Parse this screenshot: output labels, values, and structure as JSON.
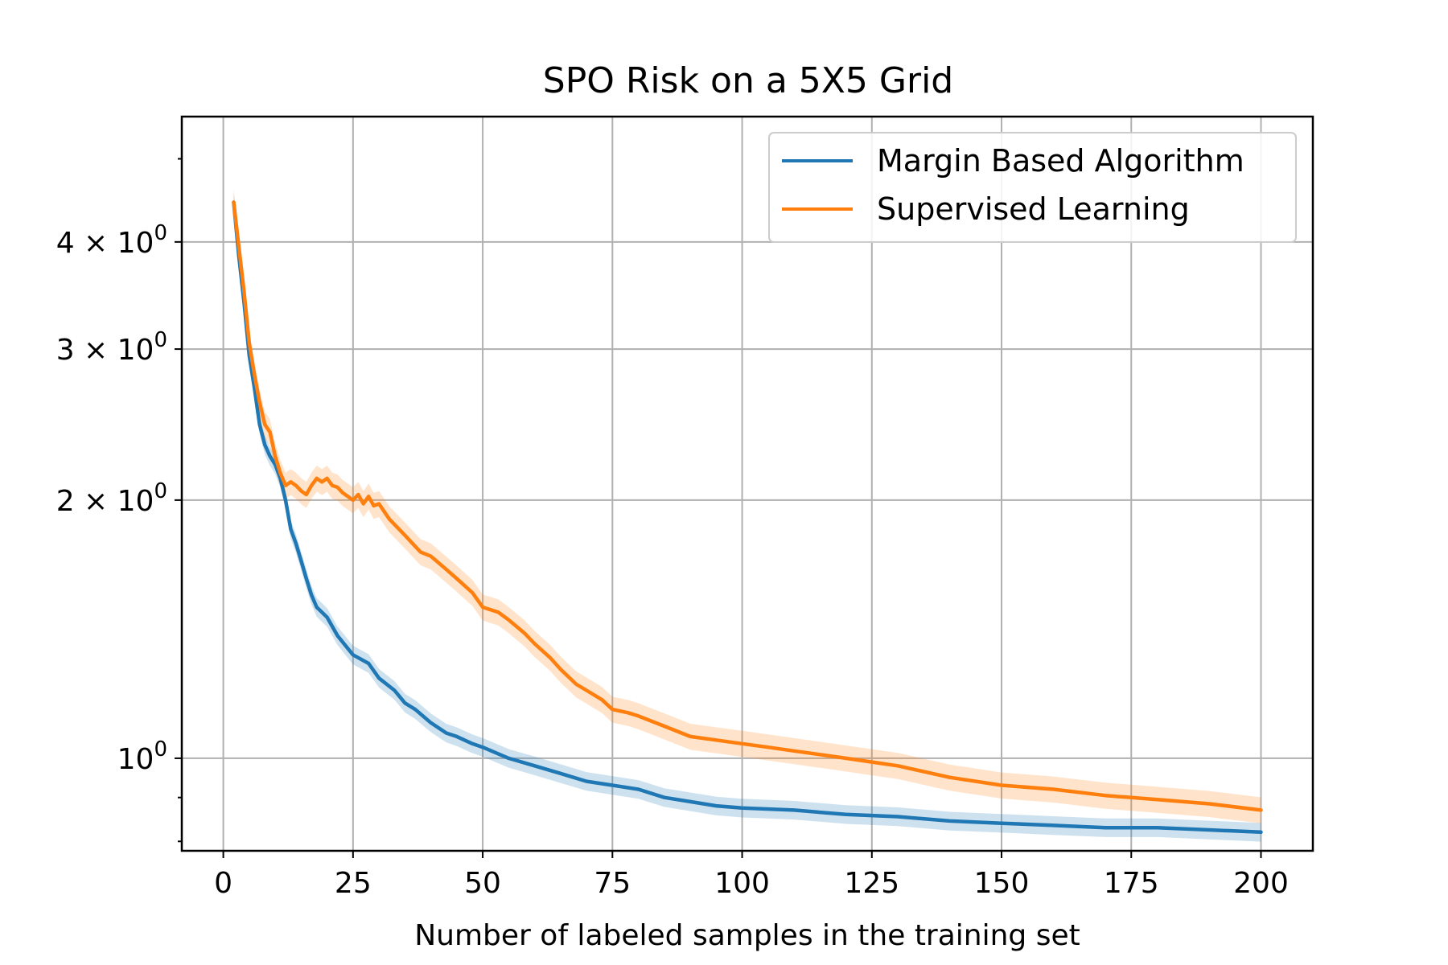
{
  "chart_data": {
    "type": "line",
    "title": "SPO Risk on a 5X5 Grid",
    "xlabel": "Number of labeled samples in the training set",
    "ylabel": "",
    "yscale": "log",
    "xlim": [
      -8,
      210
    ],
    "ylim": [
      0.78,
      5.6
    ],
    "grid": true,
    "legend_position": "top-right",
    "x_ticks": [
      0,
      25,
      50,
      75,
      100,
      125,
      150,
      175,
      200
    ],
    "x_tick_labels": [
      "0",
      "25",
      "50",
      "75",
      "100",
      "125",
      "150",
      "175",
      "200"
    ],
    "y_ticks": [
      {
        "value": 1,
        "base": "10",
        "exp": "0",
        "mult": ""
      },
      {
        "value": 2,
        "base": "10",
        "exp": "0",
        "mult": "2 × "
      },
      {
        "value": 3,
        "base": "10",
        "exp": "0",
        "mult": "3 × "
      },
      {
        "value": 4,
        "base": "10",
        "exp": "0",
        "mult": "4 × "
      }
    ],
    "y_minor_ticks": [
      0.8,
      0.9,
      5
    ],
    "series": [
      {
        "name": "Margin Based Algorithm",
        "color": "#1f77b4",
        "band_color": "#1f77b4",
        "x": [
          2,
          3,
          4,
          5,
          6,
          7,
          8,
          9,
          10,
          11,
          12,
          13,
          14,
          15,
          16,
          17,
          18,
          19,
          20,
          22,
          25,
          28,
          30,
          33,
          35,
          37,
          40,
          43,
          45,
          48,
          50,
          55,
          60,
          65,
          70,
          75,
          80,
          85,
          90,
          95,
          100,
          110,
          120,
          130,
          140,
          150,
          160,
          170,
          180,
          190,
          200
        ],
        "y": [
          4.45,
          3.85,
          3.4,
          2.95,
          2.7,
          2.45,
          2.32,
          2.25,
          2.2,
          2.12,
          2.0,
          1.85,
          1.78,
          1.7,
          1.62,
          1.55,
          1.5,
          1.48,
          1.46,
          1.39,
          1.32,
          1.29,
          1.24,
          1.2,
          1.16,
          1.14,
          1.1,
          1.07,
          1.06,
          1.04,
          1.03,
          1.0,
          0.98,
          0.96,
          0.94,
          0.93,
          0.92,
          0.9,
          0.89,
          0.88,
          0.875,
          0.87,
          0.86,
          0.855,
          0.845,
          0.84,
          0.835,
          0.83,
          0.83,
          0.825,
          0.82
        ],
        "band": 0.025
      },
      {
        "name": "Supervised Learning",
        "color": "#ff7f0e",
        "band_color": "#ff7f0e",
        "x": [
          2,
          3,
          4,
          5,
          6,
          7,
          8,
          9,
          10,
          11,
          12,
          13,
          14,
          15,
          16,
          17,
          18,
          19,
          20,
          21,
          22,
          23,
          24,
          25,
          26,
          27,
          28,
          29,
          30,
          32,
          35,
          38,
          40,
          43,
          45,
          48,
          50,
          53,
          55,
          58,
          60,
          63,
          65,
          68,
          70,
          73,
          75,
          78,
          80,
          85,
          90,
          95,
          100,
          105,
          110,
          115,
          120,
          125,
          130,
          140,
          150,
          160,
          170,
          180,
          190,
          200
        ],
        "y": [
          4.45,
          3.95,
          3.5,
          3.05,
          2.8,
          2.6,
          2.45,
          2.4,
          2.25,
          2.15,
          2.08,
          2.1,
          2.08,
          2.05,
          2.03,
          2.08,
          2.12,
          2.1,
          2.12,
          2.08,
          2.07,
          2.04,
          2.02,
          2.0,
          2.03,
          1.98,
          2.02,
          1.97,
          1.98,
          1.9,
          1.82,
          1.74,
          1.72,
          1.66,
          1.62,
          1.56,
          1.5,
          1.48,
          1.45,
          1.4,
          1.36,
          1.31,
          1.27,
          1.22,
          1.2,
          1.17,
          1.14,
          1.13,
          1.12,
          1.09,
          1.06,
          1.05,
          1.04,
          1.03,
          1.02,
          1.01,
          1.0,
          0.99,
          0.98,
          0.95,
          0.93,
          0.92,
          0.905,
          0.895,
          0.885,
          0.87
        ],
        "band": 0.035
      }
    ]
  }
}
